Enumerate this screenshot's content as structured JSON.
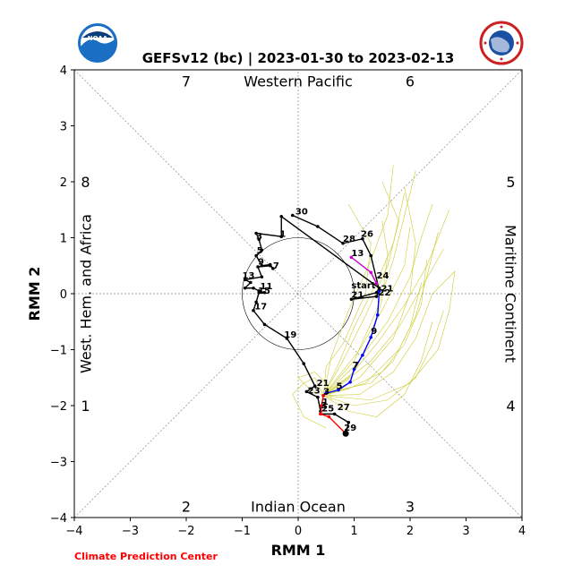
{
  "chart_data": {
    "type": "line",
    "title": "GEFSv12 (bc) | 2023-01-30 to 2023-02-13",
    "xlabel": "RMM 1",
    "ylabel": "RMM 2",
    "xlim": [
      -4,
      4
    ],
    "ylim": [
      -4,
      4
    ],
    "xticks": [
      "−4",
      "−3",
      "−2",
      "−1",
      "0",
      "1",
      "2",
      "3",
      "4"
    ],
    "yticks": [
      "−4",
      "−3",
      "−2",
      "−1",
      "0",
      "1",
      "2",
      "3",
      "4"
    ],
    "phase_numbers": [
      {
        "label": "7",
        "x": -2.0,
        "y": 3.8
      },
      {
        "label": "6",
        "x": 2.0,
        "y": 3.8
      },
      {
        "label": "5",
        "x": 3.8,
        "y": 2.0
      },
      {
        "label": "4",
        "x": 3.8,
        "y": -2.0
      },
      {
        "label": "3",
        "x": 2.0,
        "y": -3.8
      },
      {
        "label": "2",
        "x": -2.0,
        "y": -3.8
      },
      {
        "label": "1",
        "x": -3.8,
        "y": -2.0
      },
      {
        "label": "8",
        "x": -3.8,
        "y": 2.0
      }
    ],
    "regions": {
      "top": "Western Pacific",
      "bottom": "Indian Ocean",
      "left": "West. Hem. and Africa",
      "right": "Maritime Continent"
    },
    "credit": "Climate Prediction Center",
    "logos": {
      "left": "NOAA",
      "right": "NATIONAL WEATHER SERVICE"
    },
    "series": [
      {
        "color": "#000000",
        "points": [
          [
            -0.1,
            1.4
          ],
          [
            0.35,
            1.2
          ],
          [
            0.8,
            0.9
          ],
          [
            1.15,
            0.98
          ],
          [
            1.3,
            0.68
          ],
          [
            1.45,
            0.05
          ],
          [
            1.4,
            -0.05
          ],
          [
            0.95,
            -0.1
          ],
          [
            1.4,
            0.02
          ],
          [
            1.45,
            0.1
          ],
          [
            -0.3,
            1.38
          ],
          [
            -0.3,
            1.02
          ],
          [
            -0.75,
            1.08
          ],
          [
            -0.7,
            0.97
          ],
          [
            -0.65,
            0.78
          ],
          [
            -0.75,
            0.68
          ],
          [
            -0.65,
            0.5
          ],
          [
            -0.5,
            0.52
          ],
          [
            -0.45,
            0.45
          ],
          [
            -0.5,
            0.5
          ],
          [
            -0.72,
            0.48
          ],
          [
            -0.65,
            0.3
          ],
          [
            -0.95,
            0.25
          ],
          [
            -0.85,
            0.2
          ],
          [
            -0.95,
            0.1
          ],
          [
            -0.8,
            0.1
          ],
          [
            -0.7,
            0.05
          ],
          [
            -0.6,
            0.02
          ],
          [
            -0.7,
            0.02
          ],
          [
            -0.75,
            -0.15
          ],
          [
            -0.8,
            -0.3
          ],
          [
            -0.6,
            -0.55
          ],
          [
            -0.2,
            -0.8
          ],
          [
            0.1,
            -1.25
          ],
          [
            0.3,
            -1.65
          ],
          [
            0.15,
            -1.75
          ],
          [
            0.35,
            -1.85
          ],
          [
            0.4,
            -2.1
          ],
          [
            0.4,
            -2.15
          ],
          [
            0.65,
            -2.15
          ],
          [
            0.9,
            -2.3
          ],
          [
            0.85,
            -2.5
          ]
        ],
        "labels": [
          {
            "text": "30",
            "x": -0.05,
            "y": 1.42
          },
          {
            "text": "1",
            "x": -0.33,
            "y": 1.02
          },
          {
            "text": "3",
            "x": -0.75,
            "y": 0.98
          },
          {
            "text": "5",
            "x": -0.74,
            "y": 0.72
          },
          {
            "text": "9",
            "x": -0.72,
            "y": 0.52
          },
          {
            "text": "7",
            "x": -0.45,
            "y": 0.45
          },
          {
            "text": "13",
            "x": -1.0,
            "y": 0.27
          },
          {
            "text": "11",
            "x": -0.68,
            "y": 0.08
          },
          {
            "text": "15",
            "x": -0.72,
            "y": 0.0
          },
          {
            "text": "17",
            "x": -0.78,
            "y": -0.28
          },
          {
            "text": "19",
            "x": -0.25,
            "y": -0.78
          },
          {
            "text": "28",
            "x": 0.8,
            "y": 0.93
          },
          {
            "text": "26",
            "x": 1.12,
            "y": 1.02
          },
          {
            "text": "24",
            "x": 1.4,
            "y": 0.27
          },
          {
            "text": "start",
            "x": 0.95,
            "y": 0.1
          },
          {
            "text": "21",
            "x": 0.95,
            "y": -0.07
          },
          {
            "text": "21",
            "x": 1.48,
            "y": 0.04
          },
          {
            "text": "22",
            "x": 1.43,
            "y": -0.03
          },
          {
            "text": "21",
            "x": 0.33,
            "y": -1.65
          },
          {
            "text": "23",
            "x": 0.17,
            "y": -1.78
          },
          {
            "text": "25",
            "x": 0.42,
            "y": -2.1
          },
          {
            "text": "27",
            "x": 0.7,
            "y": -2.08
          },
          {
            "text": "29",
            "x": 0.82,
            "y": -2.45
          }
        ]
      },
      {
        "color": "#cc00cc",
        "points": [
          [
            0.95,
            0.65
          ],
          [
            1.3,
            0.38
          ],
          [
            1.4,
            0.18
          ]
        ],
        "labels": [
          {
            "text": "13",
            "x": 0.95,
            "y": 0.67
          }
        ]
      },
      {
        "color": "#0000ff",
        "points": [
          [
            1.45,
            0.05
          ],
          [
            1.42,
            -0.38
          ],
          [
            1.3,
            -0.78
          ],
          [
            1.15,
            -1.1
          ],
          [
            1.0,
            -1.35
          ],
          [
            0.93,
            -1.58
          ],
          [
            0.72,
            -1.72
          ],
          [
            0.5,
            -1.78
          ],
          [
            0.45,
            -1.82
          ]
        ],
        "labels": [
          {
            "text": "9",
            "x": 1.3,
            "y": -0.72
          },
          {
            "text": "7",
            "x": 0.97,
            "y": -1.33
          },
          {
            "text": "5",
            "x": 0.68,
            "y": -1.7
          },
          {
            "text": "3",
            "x": 0.45,
            "y": -1.8
          }
        ]
      },
      {
        "color": "#ff0000",
        "points": [
          [
            0.45,
            -1.82
          ],
          [
            0.42,
            -2.0
          ],
          [
            0.4,
            -2.15
          ],
          [
            0.55,
            -2.2
          ],
          [
            0.85,
            -2.5
          ]
        ],
        "labels": [
          {
            "text": "1",
            "x": 0.43,
            "y": -1.98
          },
          {
            "text": "3",
            "x": 0.4,
            "y": -2.05
          }
        ]
      }
    ],
    "ensemble": {
      "color": "#cccc33",
      "members": [
        [
          [
            0.45,
            -1.82
          ],
          [
            0.9,
            -1.5
          ],
          [
            1.4,
            -0.9
          ],
          [
            1.9,
            -0.2
          ],
          [
            2.3,
            0.5
          ],
          [
            2.7,
            1.5
          ]
        ],
        [
          [
            0.45,
            -1.82
          ],
          [
            1.0,
            -1.3
          ],
          [
            1.6,
            -0.5
          ],
          [
            2.0,
            0.3
          ],
          [
            2.2,
            1.0
          ],
          [
            2.4,
            1.6
          ]
        ],
        [
          [
            0.45,
            -1.82
          ],
          [
            0.8,
            -1.6
          ],
          [
            1.3,
            -1.2
          ],
          [
            1.8,
            -0.6
          ],
          [
            2.2,
            0.1
          ],
          [
            2.6,
            0.8
          ]
        ],
        [
          [
            0.45,
            -1.82
          ],
          [
            1.1,
            -1.8
          ],
          [
            1.7,
            -1.4
          ],
          [
            2.1,
            -0.8
          ],
          [
            2.4,
            0.0
          ],
          [
            2.8,
            0.4
          ]
        ],
        [
          [
            0.45,
            -1.82
          ],
          [
            0.7,
            -1.3
          ],
          [
            1.0,
            -0.6
          ],
          [
            1.4,
            0.2
          ],
          [
            1.7,
            0.9
          ],
          [
            1.9,
            1.8
          ]
        ],
        [
          [
            0.45,
            -1.82
          ],
          [
            1.0,
            -2.0
          ],
          [
            1.6,
            -1.9
          ],
          [
            2.1,
            -1.5
          ],
          [
            2.4,
            -0.9
          ],
          [
            2.6,
            -0.3
          ]
        ],
        [
          [
            0.45,
            -1.82
          ],
          [
            0.6,
            -1.1
          ],
          [
            0.9,
            -0.3
          ],
          [
            1.3,
            0.6
          ],
          [
            1.6,
            1.4
          ],
          [
            1.7,
            2.3
          ]
        ],
        [
          [
            0.45,
            -1.82
          ],
          [
            1.2,
            -1.6
          ],
          [
            1.8,
            -1.0
          ],
          [
            2.1,
            -0.4
          ],
          [
            2.3,
            0.3
          ],
          [
            2.5,
            1.1
          ]
        ],
        [
          [
            0.45,
            -1.82
          ],
          [
            0.9,
            -1.7
          ],
          [
            1.5,
            -1.4
          ],
          [
            1.9,
            -0.9
          ],
          [
            2.2,
            -0.2
          ],
          [
            2.3,
            0.6
          ]
        ],
        [
          [
            0.45,
            -1.82
          ],
          [
            0.8,
            -1.2
          ],
          [
            1.2,
            -0.4
          ],
          [
            1.6,
            0.5
          ],
          [
            1.8,
            1.3
          ],
          [
            1.5,
            2.0
          ]
        ],
        [
          [
            0.45,
            -1.82
          ],
          [
            0.3,
            -1.5
          ],
          [
            0.1,
            -1.6
          ],
          [
            -0.1,
            -1.8
          ],
          [
            0.1,
            -2.2
          ],
          [
            0.5,
            -2.4
          ]
        ],
        [
          [
            0.45,
            -1.82
          ],
          [
            1.0,
            -1.4
          ],
          [
            1.3,
            -0.8
          ],
          [
            1.5,
            -0.1
          ],
          [
            1.6,
            0.7
          ],
          [
            1.5,
            1.3
          ]
        ],
        [
          [
            0.45,
            -1.82
          ],
          [
            1.3,
            -1.9
          ],
          [
            2.0,
            -1.6
          ],
          [
            2.5,
            -1.0
          ],
          [
            2.7,
            -0.3
          ],
          [
            2.8,
            0.4
          ]
        ],
        [
          [
            0.45,
            -1.82
          ],
          [
            0.7,
            -1.5
          ],
          [
            1.1,
            -1.0
          ],
          [
            1.5,
            -0.3
          ],
          [
            1.9,
            0.5
          ],
          [
            2.0,
            1.2
          ]
        ],
        [
          [
            0.45,
            -1.82
          ],
          [
            0.5,
            -1.3
          ],
          [
            0.8,
            -0.9
          ],
          [
            1.2,
            0.0
          ],
          [
            1.3,
            0.9
          ],
          [
            0.9,
            1.6
          ]
        ],
        [
          [
            0.45,
            -1.82
          ],
          [
            1.1,
            -1.5
          ],
          [
            1.7,
            -0.8
          ],
          [
            2.0,
            0.0
          ],
          [
            2.1,
            0.9
          ],
          [
            1.9,
            1.9
          ]
        ],
        [
          [
            0.45,
            -1.82
          ],
          [
            0.9,
            -2.1
          ],
          [
            1.4,
            -2.2
          ],
          [
            1.9,
            -1.8
          ],
          [
            2.2,
            -1.2
          ],
          [
            2.4,
            -0.5
          ]
        ],
        [
          [
            0.45,
            -1.82
          ],
          [
            0.8,
            -1.7
          ],
          [
            1.3,
            -1.6
          ],
          [
            1.7,
            -1.2
          ],
          [
            2.0,
            -0.6
          ],
          [
            2.2,
            0.2
          ]
        ],
        [
          [
            0.45,
            -1.82
          ],
          [
            0.2,
            -1.7
          ],
          [
            0.0,
            -1.5
          ],
          [
            0.3,
            -1.4
          ],
          [
            0.5,
            -1.6
          ],
          [
            0.6,
            -1.9
          ]
        ],
        [
          [
            0.45,
            -1.82
          ],
          [
            1.0,
            -1.2
          ],
          [
            1.4,
            -0.3
          ],
          [
            1.7,
            0.6
          ],
          [
            1.9,
            1.4
          ],
          [
            2.1,
            2.2
          ]
        ]
      ]
    },
    "amplitude_circle_radius": 1
  }
}
